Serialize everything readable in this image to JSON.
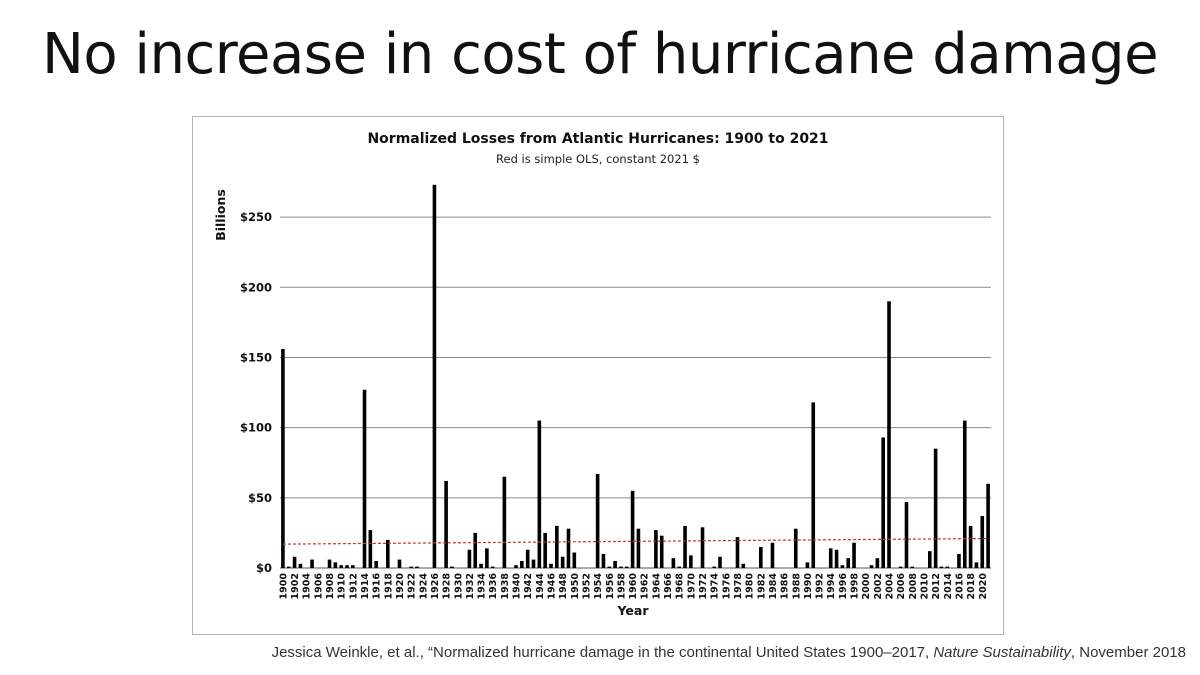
{
  "slide": {
    "title": "No increase in cost of hurricane damage"
  },
  "citation": {
    "prefix": "Jessica Weinkle, et al., “Normalized hurricane damage in the continental United States 1900–2017, ",
    "journal": "Nature Sustainability",
    "suffix": ", November 2018"
  },
  "colors": {
    "bar": "#000000",
    "trend": "#c0392b",
    "grid": "#8a8a8a"
  },
  "chart_data": {
    "type": "bar",
    "title": "Normalized Losses from Atlantic Hurricanes: 1900 to 2021",
    "subtitle": "Red is simple OLS, constant 2021 $",
    "xlabel": "Year",
    "ylabel": "Billions",
    "ylim": [
      0,
      275
    ],
    "yticks": [
      0,
      50,
      100,
      150,
      200,
      250
    ],
    "ytick_labels": [
      "$0",
      "$50",
      "$100",
      "$150",
      "$200",
      "$250"
    ],
    "grid": true,
    "legend": false,
    "x": [
      1900,
      1901,
      1902,
      1903,
      1904,
      1905,
      1906,
      1907,
      1908,
      1909,
      1910,
      1911,
      1912,
      1913,
      1914,
      1915,
      1916,
      1917,
      1918,
      1919,
      1920,
      1921,
      1922,
      1923,
      1924,
      1925,
      1926,
      1927,
      1928,
      1929,
      1930,
      1931,
      1932,
      1933,
      1934,
      1935,
      1936,
      1937,
      1938,
      1939,
      1940,
      1941,
      1942,
      1943,
      1944,
      1945,
      1946,
      1947,
      1948,
      1949,
      1950,
      1951,
      1952,
      1953,
      1954,
      1955,
      1956,
      1957,
      1958,
      1959,
      1960,
      1961,
      1962,
      1963,
      1964,
      1965,
      1966,
      1967,
      1968,
      1969,
      1970,
      1971,
      1972,
      1973,
      1974,
      1975,
      1976,
      1977,
      1978,
      1979,
      1980,
      1981,
      1982,
      1983,
      1984,
      1985,
      1986,
      1987,
      1988,
      1989,
      1990,
      1991,
      1992,
      1993,
      1994,
      1995,
      1996,
      1997,
      1998,
      1999,
      2000,
      2001,
      2002,
      2003,
      2004,
      2005,
      2006,
      2007,
      2008,
      2009,
      2010,
      2011,
      2012,
      2013,
      2014,
      2015,
      2016,
      2017,
      2018,
      2019,
      2020,
      2021
    ],
    "xtick_labels": [
      "1900",
      "1902",
      "1904",
      "1906",
      "1908",
      "1910",
      "1912",
      "1914",
      "1916",
      "1918",
      "1920",
      "1922",
      "1924",
      "1926",
      "1928",
      "1930",
      "1932",
      "1934",
      "1936",
      "1938",
      "1940",
      "1942",
      "1944",
      "1946",
      "1948",
      "1950",
      "1952",
      "1954",
      "1956",
      "1958",
      "1960",
      "1962",
      "1964",
      "1966",
      "1968",
      "1970",
      "1972",
      "1974",
      "1976",
      "1978",
      "1980",
      "1982",
      "1984",
      "1986",
      "1988",
      "1990",
      "1992",
      "1994",
      "1996",
      "1998",
      "2000",
      "2002",
      "2004",
      "2006",
      "2008",
      "2010",
      "2012",
      "2014",
      "2016",
      "2018",
      "2020"
    ],
    "values": [
      156,
      1,
      8,
      3,
      0,
      6,
      0,
      0,
      6,
      4,
      2,
      2,
      2,
      0,
      127,
      27,
      5,
      0,
      20,
      0,
      6,
      0,
      1,
      1,
      0,
      0,
      273,
      0,
      62,
      1,
      0,
      0,
      13,
      25,
      3,
      14,
      1,
      0,
      65,
      0,
      2,
      5,
      13,
      6,
      105,
      25,
      3,
      30,
      8,
      28,
      11,
      0,
      0,
      0,
      67,
      10,
      1,
      5,
      1,
      1,
      55,
      28,
      0,
      0,
      27,
      23,
      0,
      7,
      1,
      30,
      9,
      0,
      29,
      0,
      1,
      8,
      0,
      0,
      22,
      3,
      0,
      0,
      15,
      0,
      18,
      0,
      0,
      0,
      28,
      0,
      4,
      118,
      0,
      0,
      14,
      13,
      2,
      7,
      18,
      0,
      0,
      2,
      7,
      93,
      190,
      0,
      1,
      47,
      1,
      0,
      0,
      12,
      85,
      1,
      1,
      0,
      10,
      105,
      30,
      4,
      37,
      60
    ],
    "trend_line": {
      "x": [
        1900,
        2021
      ],
      "y": [
        17,
        21
      ]
    }
  }
}
